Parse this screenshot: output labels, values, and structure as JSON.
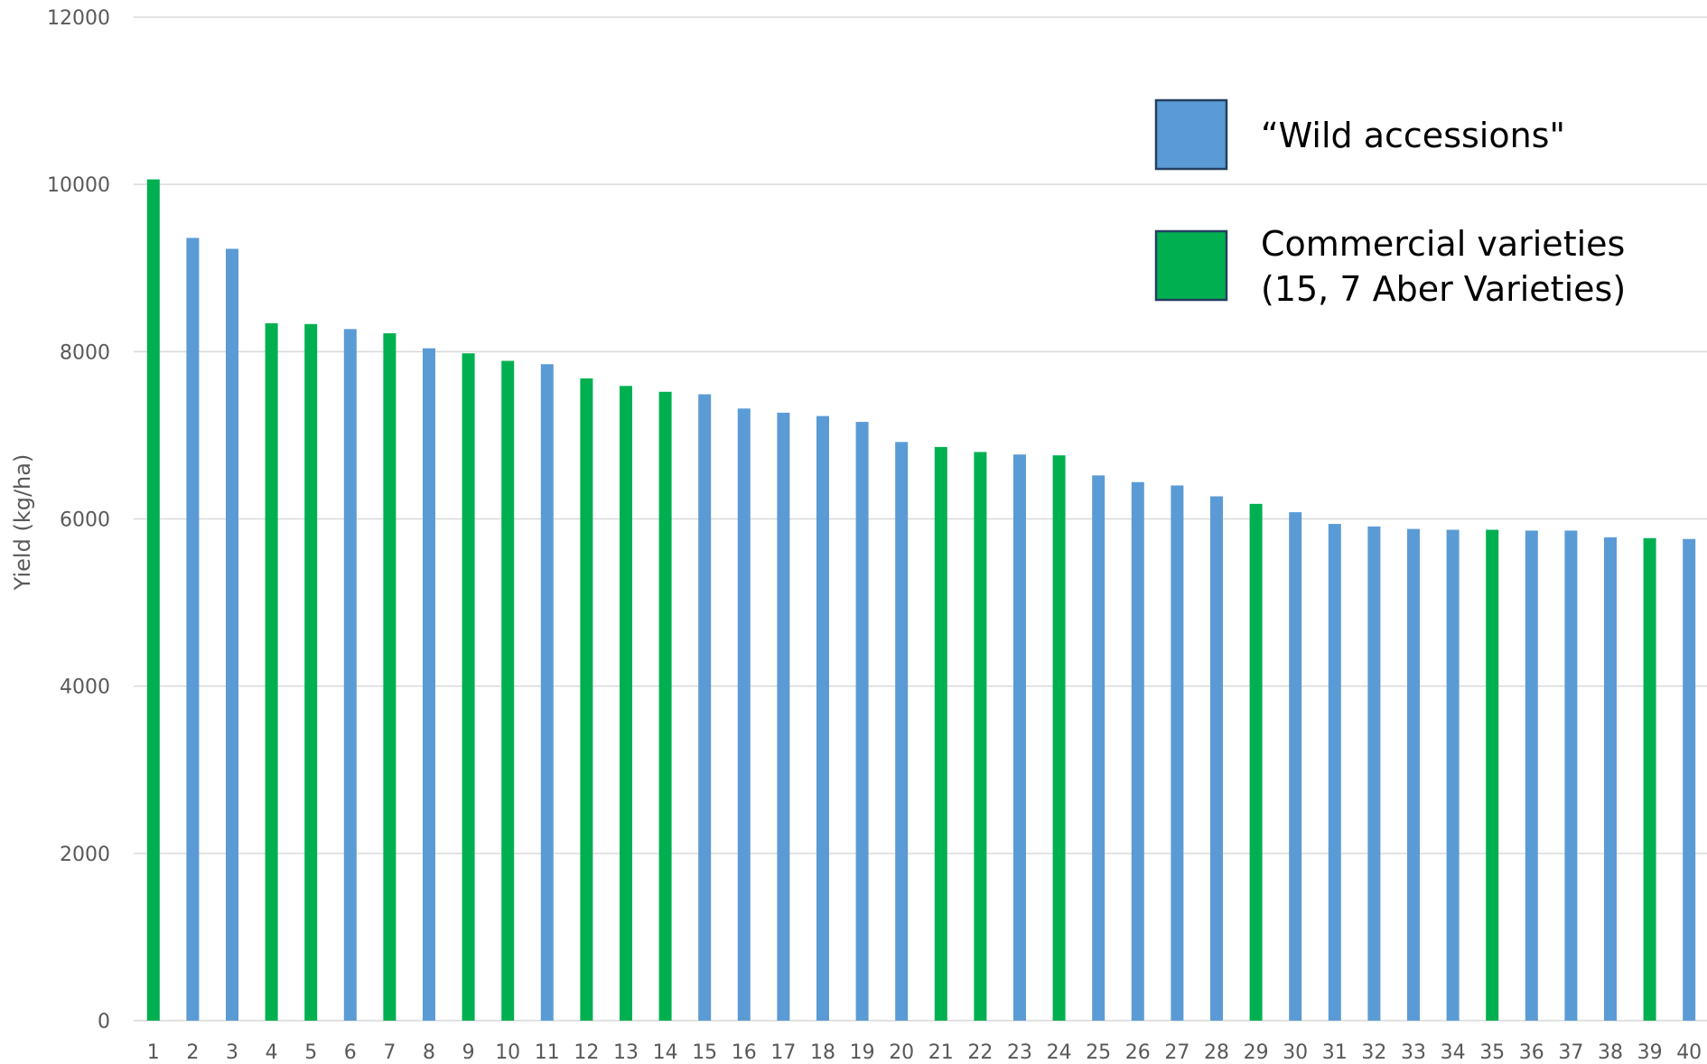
{
  "chart_data": {
    "type": "bar",
    "title": "",
    "xlabel": "",
    "ylabel": "Yield (kg/ha)",
    "ylim": [
      0,
      12000
    ],
    "yticks": [
      0,
      2000,
      4000,
      6000,
      8000,
      10000,
      12000
    ],
    "grid": true,
    "legend_position": "top-right",
    "categories": [
      "1",
      "2",
      "3",
      "4",
      "5",
      "6",
      "7",
      "8",
      "9",
      "10",
      "11",
      "12",
      "13",
      "14",
      "15",
      "16",
      "17",
      "18",
      "19",
      "20",
      "21",
      "22",
      "23",
      "24",
      "25",
      "26",
      "27",
      "28",
      "29",
      "30",
      "31",
      "32",
      "33",
      "34",
      "35",
      "36",
      "37",
      "38",
      "39",
      "40"
    ],
    "values": [
      10060,
      9360,
      9230,
      8340,
      8330,
      8270,
      8220,
      8040,
      7980,
      7890,
      7850,
      7680,
      7590,
      7520,
      7490,
      7320,
      7270,
      7230,
      7160,
      6920,
      6860,
      6800,
      6770,
      6760,
      6520,
      6440,
      6400,
      6270,
      6180,
      6080,
      5940,
      5910,
      5880,
      5870,
      5870,
      5860,
      5860,
      5780,
      5770,
      5760
    ],
    "groups": [
      "commercial",
      "wild",
      "wild",
      "commercial",
      "commercial",
      "wild",
      "commercial",
      "wild",
      "commercial",
      "commercial",
      "wild",
      "commercial",
      "commercial",
      "commercial",
      "wild",
      "wild",
      "wild",
      "wild",
      "wild",
      "wild",
      "commercial",
      "commercial",
      "wild",
      "commercial",
      "wild",
      "wild",
      "wild",
      "wild",
      "commercial",
      "wild",
      "wild",
      "wild",
      "wild",
      "wild",
      "commercial",
      "wild",
      "wild",
      "wild",
      "commercial",
      "wild"
    ],
    "legend": [
      {
        "group": "wild",
        "lines": [
          "“Wild accessions\""
        ]
      },
      {
        "group": "commercial",
        "lines": [
          "Commercial varieties",
          "(15, 7 Aber Varieties)"
        ]
      }
    ]
  },
  "colors": {
    "wild": "#5b9bd5",
    "commercial": "#00b050",
    "legend_border": "#243f60",
    "grid": "#d9d9d9",
    "axis_text": "#595959"
  }
}
